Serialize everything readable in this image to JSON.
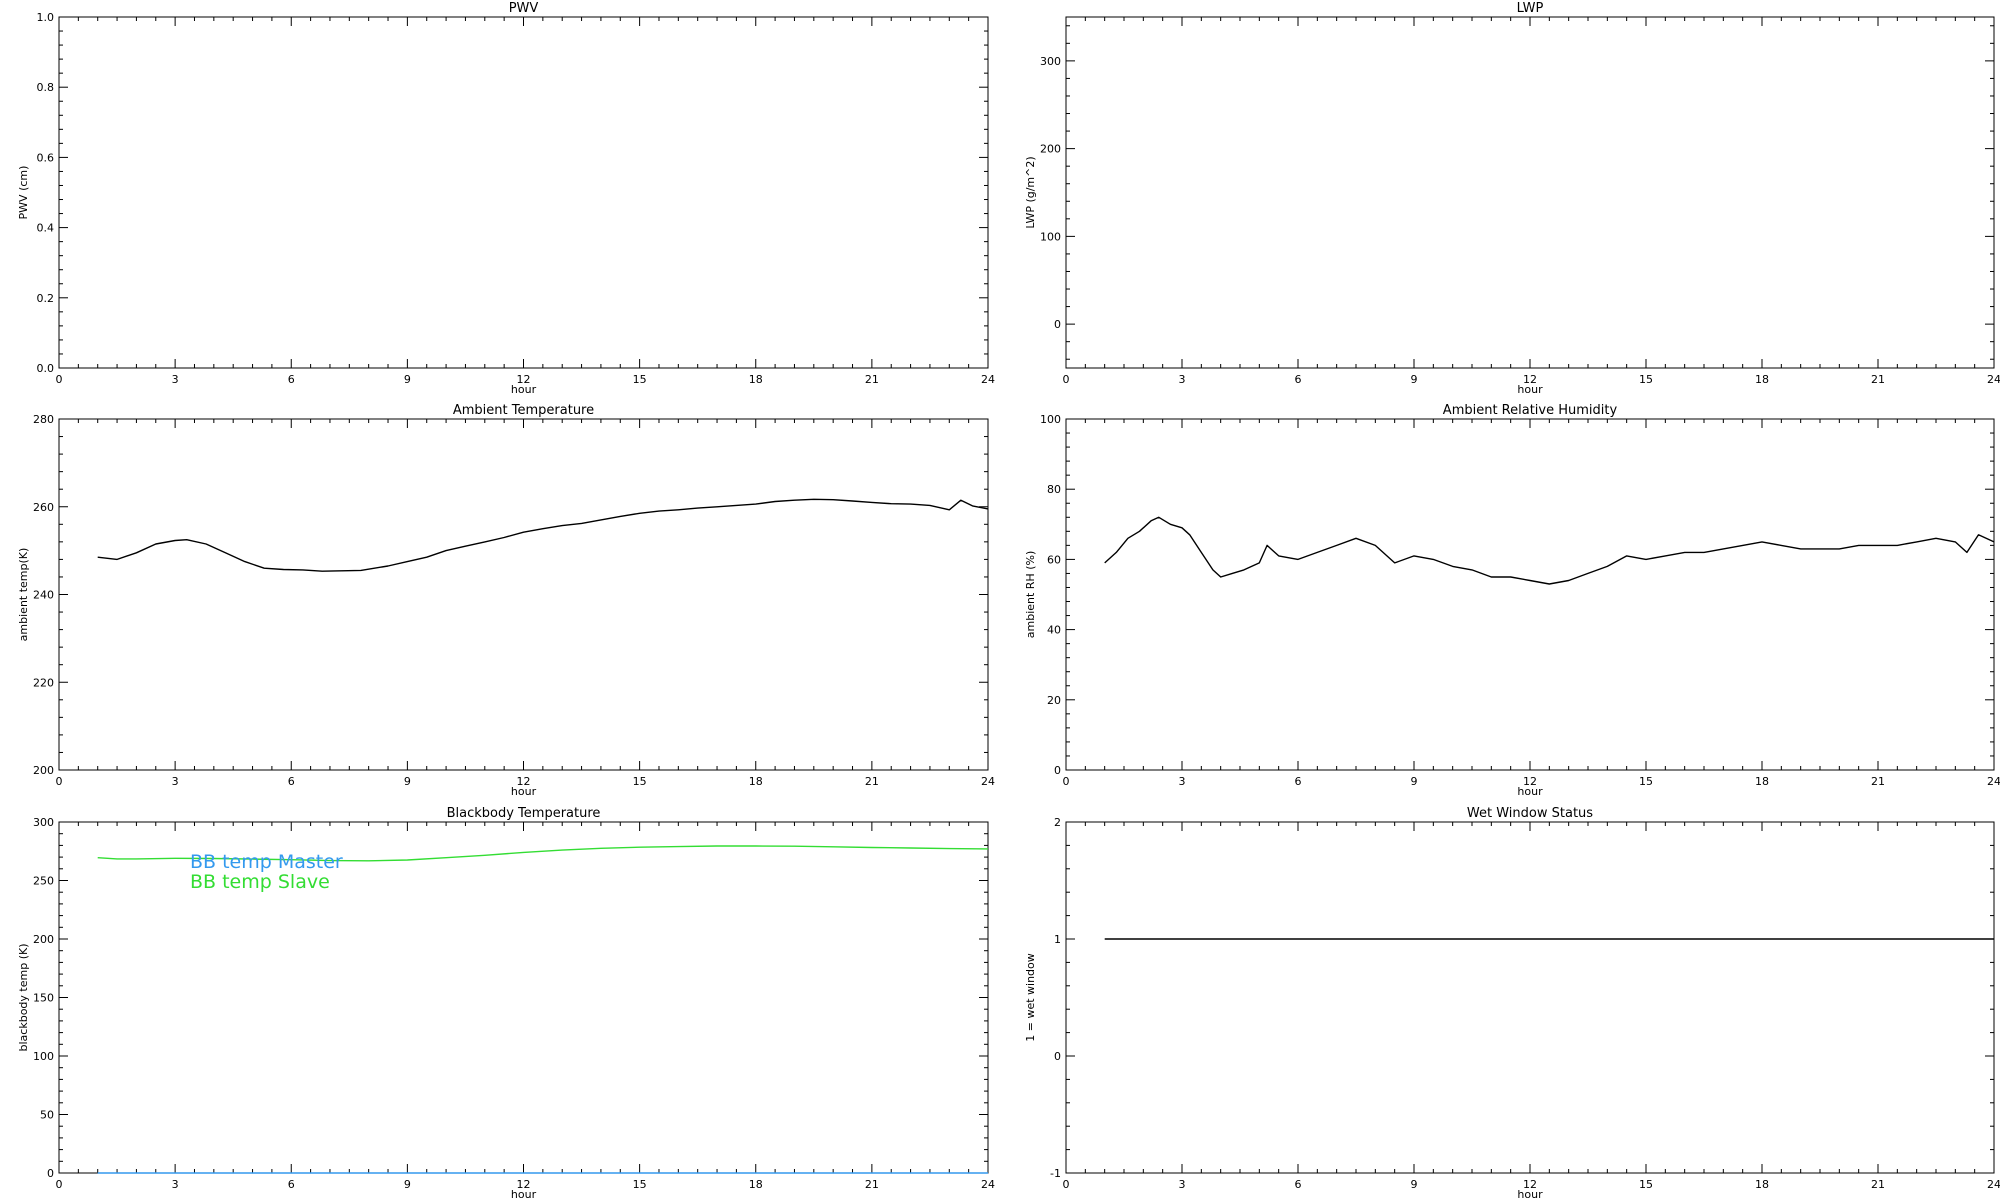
{
  "chart_data": [
    {
      "type": "line",
      "title": "PWV",
      "xlabel": "hour",
      "ylabel": "PWV (cm)",
      "xlim": [
        0,
        24
      ],
      "ylim": [
        0,
        1
      ],
      "xticks": [
        0,
        3,
        6,
        9,
        12,
        15,
        18,
        21,
        24
      ],
      "yticks": [
        "0.0",
        "0.2",
        "0.4",
        "0.6",
        "0.8",
        "1.0"
      ],
      "series": []
    },
    {
      "type": "line",
      "title": "LWP",
      "xlabel": "hour",
      "ylabel": "LWP (g/m^2)",
      "xlim": [
        0,
        24
      ],
      "ylim": [
        -50,
        350
      ],
      "xticks": [
        0,
        3,
        6,
        9,
        12,
        15,
        18,
        21,
        24
      ],
      "yticks": [
        "0",
        "100",
        "200",
        "300"
      ],
      "series": []
    },
    {
      "type": "line",
      "title": "Ambient Temperature",
      "xlabel": "hour",
      "ylabel": "ambient temp(K)",
      "xlim": [
        0,
        24
      ],
      "ylim": [
        200,
        280
      ],
      "xticks": [
        0,
        3,
        6,
        9,
        12,
        15,
        18,
        21,
        24
      ],
      "yticks": [
        "200",
        "220",
        "240",
        "260",
        "280"
      ],
      "series": [
        {
          "color": "#000000",
          "x": [
            1.0,
            1.5,
            2.0,
            2.5,
            3.0,
            3.3,
            3.8,
            4.3,
            4.8,
            5.3,
            5.8,
            6.3,
            6.8,
            7.3,
            7.8,
            8.5,
            9.0,
            9.5,
            10.0,
            10.5,
            11.0,
            11.5,
            12.0,
            12.5,
            13.0,
            13.5,
            14.0,
            14.5,
            15.0,
            15.5,
            16.0,
            16.5,
            17.0,
            17.5,
            18.0,
            18.5,
            19.0,
            19.5,
            20.0,
            20.5,
            21.0,
            21.5,
            22.0,
            22.5,
            23.0,
            23.3,
            23.6,
            24.0
          ],
          "y": [
            248.5,
            248.0,
            249.5,
            251.5,
            252.3,
            252.5,
            251.5,
            249.5,
            247.5,
            246.0,
            245.7,
            245.6,
            245.3,
            245.4,
            245.5,
            246.5,
            247.5,
            248.5,
            250.0,
            251.0,
            252.0,
            253.0,
            254.2,
            255.0,
            255.7,
            256.2,
            257.0,
            257.8,
            258.5,
            259.0,
            259.3,
            259.7,
            260.0,
            260.3,
            260.6,
            261.2,
            261.5,
            261.7,
            261.6,
            261.3,
            261.0,
            260.7,
            260.6,
            260.3,
            259.3,
            261.5,
            260.2,
            259.5
          ]
        }
      ]
    },
    {
      "type": "line",
      "title": "Ambient Relative Humidity",
      "xlabel": "hour",
      "ylabel": "ambient RH (%)",
      "xlim": [
        0,
        24
      ],
      "ylim": [
        0,
        100
      ],
      "xticks": [
        0,
        3,
        6,
        9,
        12,
        15,
        18,
        21,
        24
      ],
      "yticks": [
        "0",
        "20",
        "40",
        "60",
        "80",
        "100"
      ],
      "series": [
        {
          "color": "#000000",
          "x": [
            1.0,
            1.3,
            1.6,
            1.9,
            2.2,
            2.4,
            2.7,
            3.0,
            3.2,
            3.5,
            3.8,
            4.0,
            4.3,
            4.6,
            5.0,
            5.2,
            5.5,
            6.0,
            6.5,
            7.0,
            7.5,
            8.0,
            8.5,
            9.0,
            9.5,
            10.0,
            10.5,
            11.0,
            11.5,
            12.0,
            12.5,
            13.0,
            13.5,
            14.0,
            14.5,
            15.0,
            15.5,
            16.0,
            16.5,
            17.0,
            17.5,
            18.0,
            18.5,
            19.0,
            19.5,
            20.0,
            20.5,
            21.0,
            21.5,
            22.0,
            22.5,
            23.0,
            23.3,
            23.6,
            24.0
          ],
          "y": [
            59,
            62,
            66,
            68,
            71,
            72,
            70,
            69,
            67,
            62,
            57,
            55,
            56,
            57,
            59,
            64,
            61,
            60,
            62,
            64,
            66,
            64,
            59,
            61,
            60,
            58,
            57,
            55,
            55,
            54,
            53,
            54,
            56,
            58,
            61,
            60,
            61,
            62,
            62,
            63,
            64,
            65,
            64,
            63,
            63,
            63,
            64,
            64,
            64,
            65,
            66,
            65,
            62,
            67,
            65
          ]
        }
      ]
    },
    {
      "type": "line",
      "title": "Blackbody Temperature",
      "xlabel": "hour",
      "ylabel": "blackbody temp (K)",
      "xlim": [
        0,
        24
      ],
      "ylim": [
        0,
        300
      ],
      "xticks": [
        0,
        3,
        6,
        9,
        12,
        15,
        18,
        21,
        24
      ],
      "yticks": [
        "0",
        "50",
        "100",
        "150",
        "200",
        "250",
        "300"
      ],
      "legend": [
        {
          "label": "BB temp Master",
          "color": "#3399ee"
        },
        {
          "label": "BB temp Slave",
          "color": "#33dd33"
        }
      ],
      "series": [
        {
          "name": "BB temp Master",
          "color": "#3399ee",
          "x": [
            1,
            24
          ],
          "y": [
            0,
            0
          ]
        },
        {
          "name": "BB temp Slave",
          "color": "#33dd33",
          "x": [
            1.0,
            1.5,
            2.0,
            3.0,
            4.0,
            5.0,
            6.0,
            7.0,
            8.0,
            9.0,
            10.0,
            11.0,
            12.0,
            13.0,
            14.0,
            15.0,
            16.0,
            17.0,
            18.0,
            19.0,
            20.0,
            21.0,
            22.0,
            23.0,
            24.0
          ],
          "y": [
            269.5,
            268.5,
            268.5,
            269,
            268.8,
            268.3,
            267.8,
            267,
            266.8,
            267.5,
            269.5,
            271.5,
            274,
            276,
            277.5,
            278.5,
            279,
            279.5,
            279.5,
            279.3,
            278.8,
            278.2,
            277.8,
            277.3,
            277
          ]
        }
      ]
    },
    {
      "type": "line",
      "title": "Wet Window Status",
      "xlabel": "hour",
      "ylabel": "1 = wet window",
      "xlim": [
        0,
        24
      ],
      "ylim": [
        -1,
        2
      ],
      "xticks": [
        0,
        3,
        6,
        9,
        12,
        15,
        18,
        21,
        24
      ],
      "yticks": [
        "-1",
        "0",
        "1",
        "2"
      ],
      "series": [
        {
          "color": "#000000",
          "x": [
            1,
            24
          ],
          "y": [
            1,
            1
          ]
        }
      ]
    }
  ]
}
